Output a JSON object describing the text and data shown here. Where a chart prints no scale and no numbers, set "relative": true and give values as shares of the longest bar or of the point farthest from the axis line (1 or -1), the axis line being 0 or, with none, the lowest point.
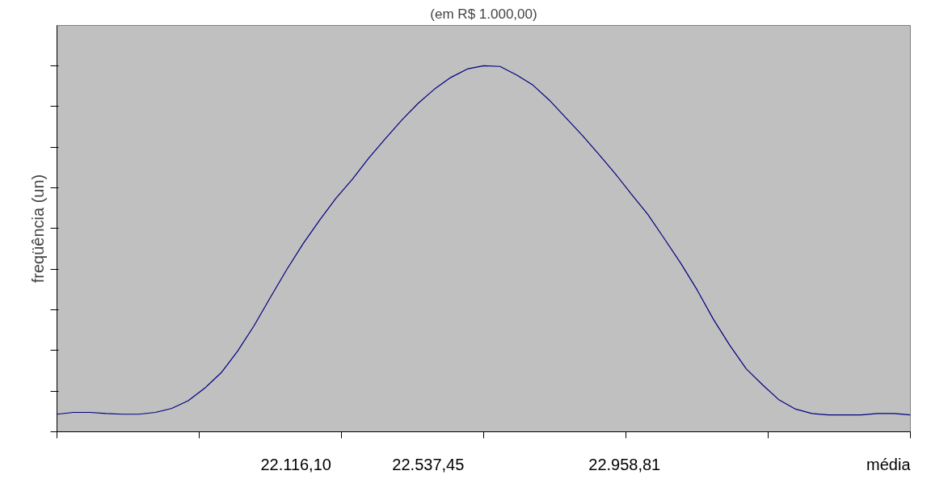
{
  "chart_data": {
    "type": "line",
    "title": "(em R$ 1.000,00)",
    "ylabel": "freqüência (un)",
    "xlabel": "média",
    "annotations": [
      "22.116,10",
      "22.537,45",
      "22.958,81"
    ],
    "relative": true,
    "grid": false,
    "marker": "none",
    "line_style": "solid",
    "categories": [
      null,
      null,
      null,
      null,
      null,
      null,
      null,
      null,
      null,
      null,
      null,
      null,
      null,
      null,
      null,
      null,
      null,
      null,
      null,
      null,
      null,
      null,
      null,
      null,
      null,
      null,
      null,
      null,
      null,
      null,
      null,
      null,
      null,
      null,
      null,
      null,
      null,
      null,
      null,
      null,
      null,
      null,
      null,
      null,
      null,
      null,
      null,
      null,
      null,
      null,
      null,
      null,
      null
    ],
    "series": [
      {
        "color": "#000080",
        "values": [
          0.048,
          0.053,
          0.053,
          0.05,
          0.048,
          0.048,
          0.053,
          0.064,
          0.085,
          0.119,
          0.161,
          0.22,
          0.289,
          0.367,
          0.443,
          0.514,
          0.578,
          0.638,
          0.69,
          0.748,
          0.8,
          0.851,
          0.897,
          0.936,
          0.968,
          0.991,
          1.0,
          0.998,
          0.975,
          0.947,
          0.906,
          0.858,
          0.81,
          0.759,
          0.706,
          0.649,
          0.594,
          0.528,
          0.461,
          0.388,
          0.307,
          0.236,
          0.172,
          0.128,
          0.087,
          0.062,
          0.05,
          0.046,
          0.046,
          0.046,
          0.05,
          0.05,
          0.046
        ]
      }
    ]
  }
}
